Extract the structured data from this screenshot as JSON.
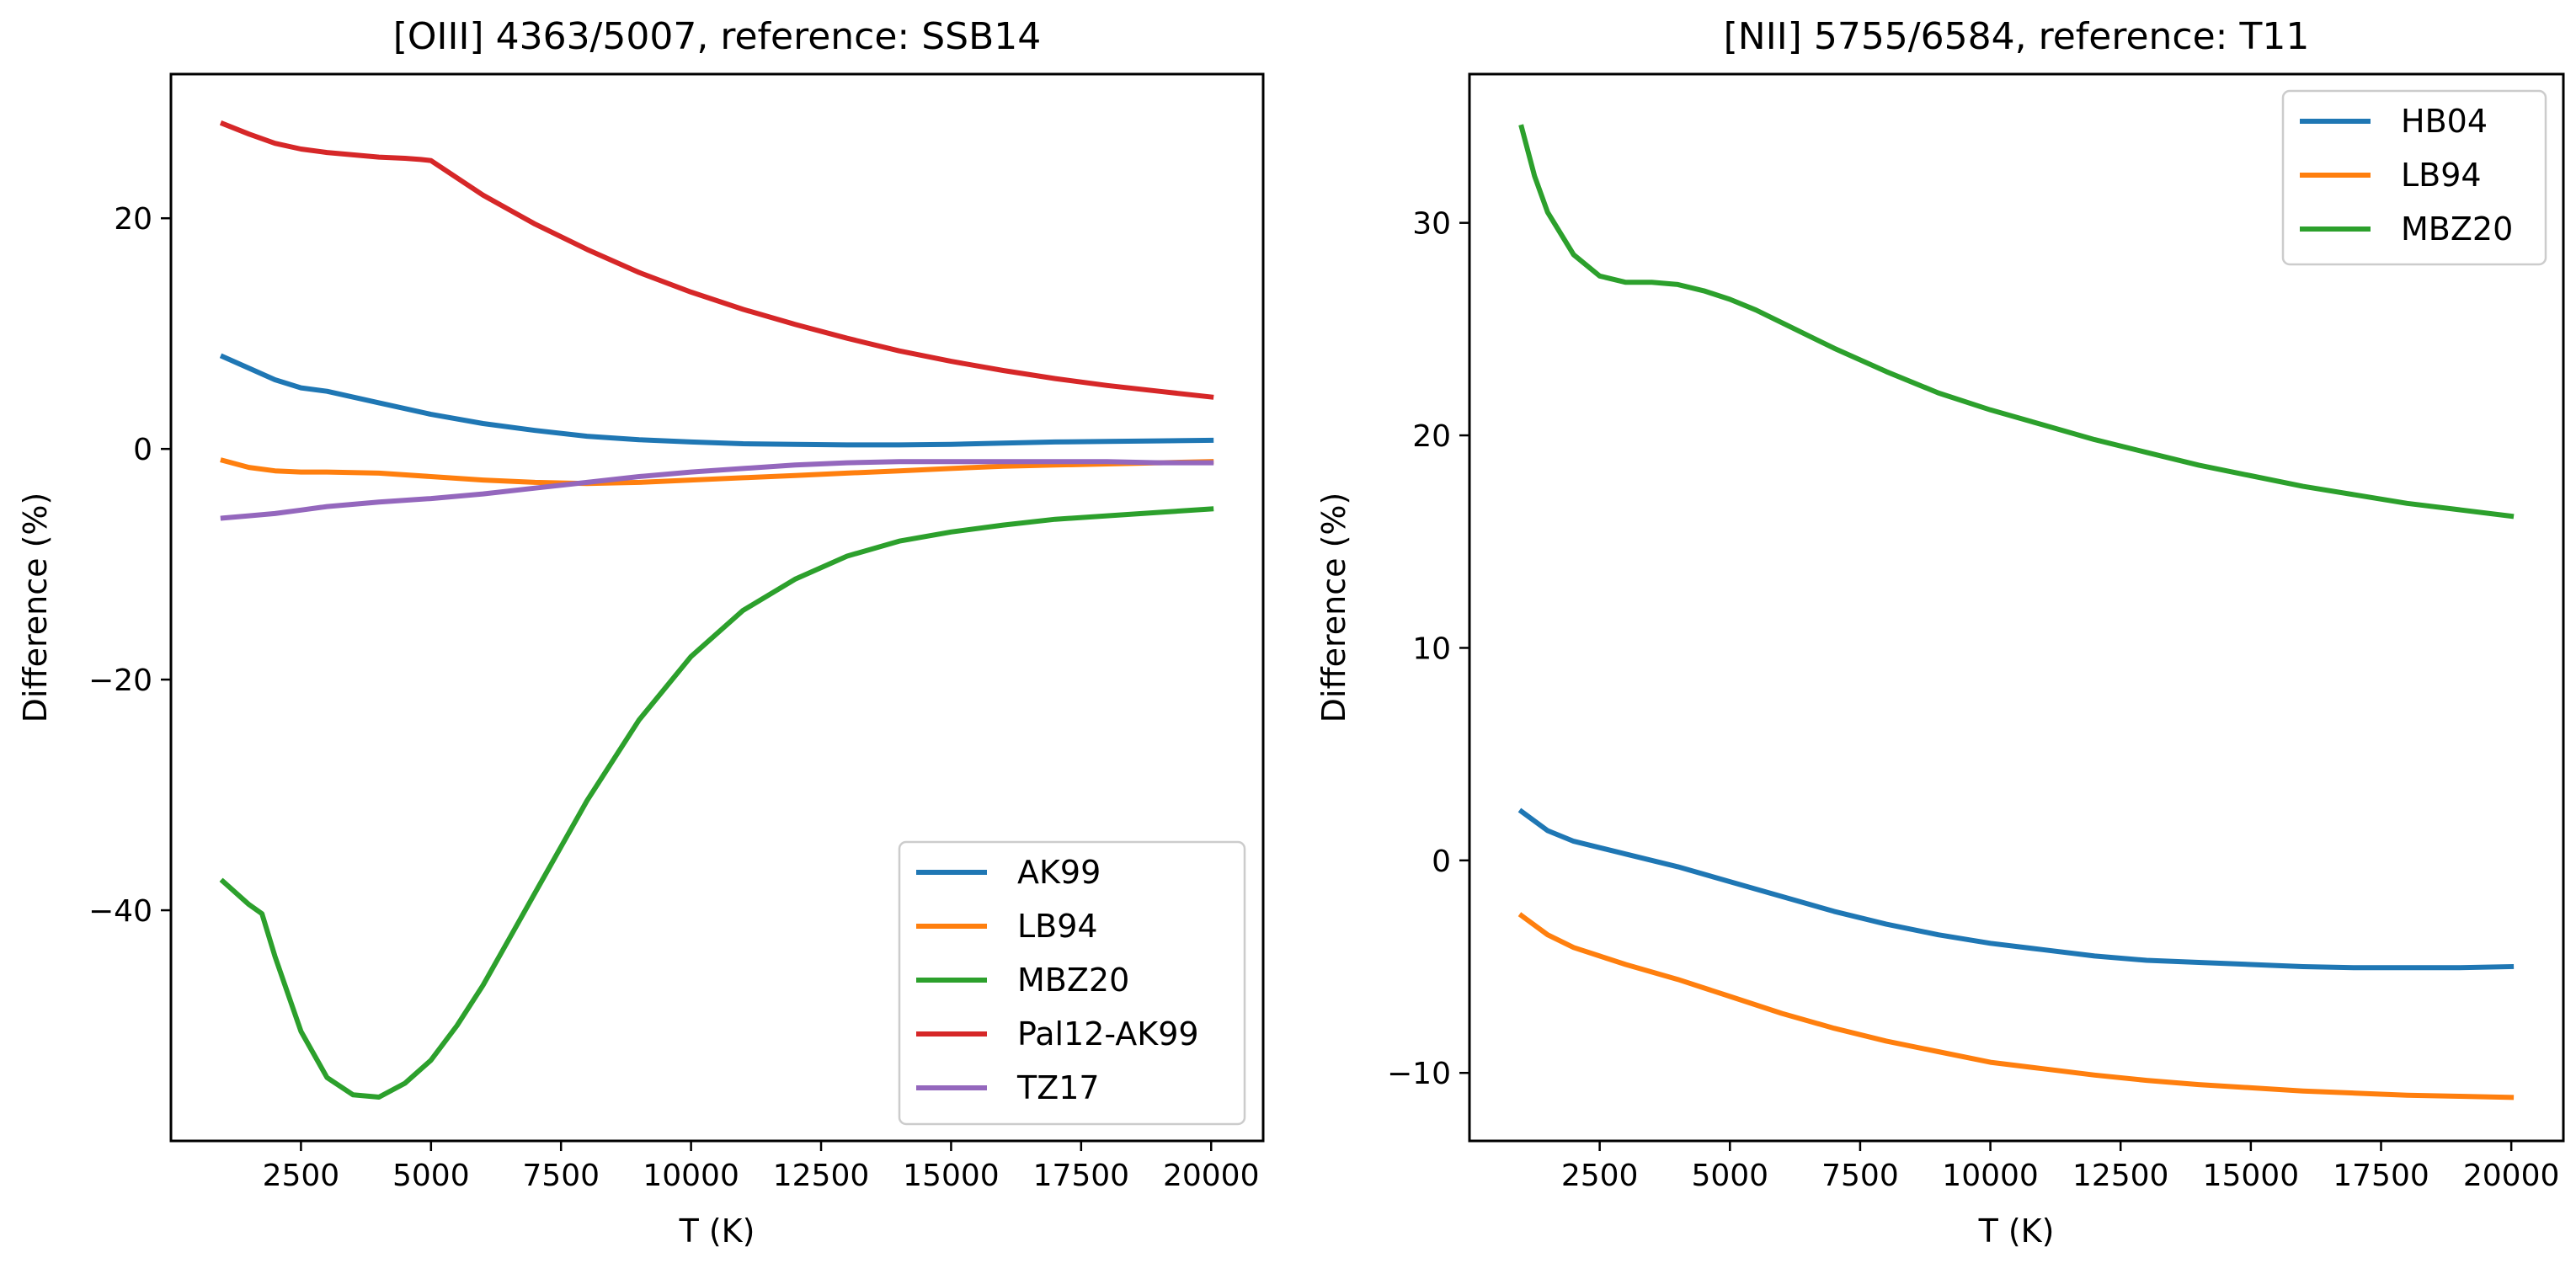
{
  "chart_data": [
    {
      "type": "line",
      "title": "[OIII] 4363/5007, reference: SSB14",
      "xlabel": "T (K)",
      "ylabel": "Difference (%)",
      "xlim": [
        0,
        21000
      ],
      "ylim": [
        -60,
        32.5
      ],
      "xticks": [
        2500,
        5000,
        7500,
        10000,
        12500,
        15000,
        17500,
        20000
      ],
      "xtick_labels": [
        "2500",
        "5000",
        "7500",
        "10000",
        "12500",
        "15000",
        "17500",
        "20000"
      ],
      "yticks": [
        -40,
        -20,
        0,
        20
      ],
      "ytick_labels": [
        "−40",
        "−20",
        "0",
        "20"
      ],
      "legend_loc": "lower-right",
      "series": [
        {
          "name": "AK99",
          "color": "#1f77b4",
          "x": [
            1000,
            1500,
            2000,
            2500,
            3000,
            4000,
            5000,
            6000,
            7000,
            8000,
            9000,
            10000,
            11000,
            12000,
            13000,
            14000,
            15000,
            16000,
            17000,
            18000,
            19000,
            20000
          ],
          "y": [
            8.0,
            7.0,
            6.0,
            5.3,
            5.0,
            4.0,
            3.0,
            2.2,
            1.6,
            1.1,
            0.8,
            0.6,
            0.45,
            0.4,
            0.35,
            0.35,
            0.4,
            0.5,
            0.6,
            0.65,
            0.7,
            0.75
          ]
        },
        {
          "name": "LB94",
          "color": "#ff7f0e",
          "x": [
            1000,
            1500,
            2000,
            2500,
            3000,
            4000,
            5000,
            6000,
            7000,
            8000,
            9000,
            10000,
            11000,
            12000,
            13000,
            14000,
            15000,
            16000,
            17000,
            18000,
            19000,
            20000
          ],
          "y": [
            -1.0,
            -1.6,
            -1.9,
            -2.0,
            -2.0,
            -2.1,
            -2.4,
            -2.7,
            -2.9,
            -3.0,
            -2.9,
            -2.7,
            -2.5,
            -2.3,
            -2.1,
            -1.9,
            -1.7,
            -1.5,
            -1.4,
            -1.3,
            -1.2,
            -1.1
          ]
        },
        {
          "name": "MBZ20",
          "color": "#2ca02c",
          "x": [
            1000,
            1500,
            1750,
            2000,
            2500,
            3000,
            3500,
            4000,
            4500,
            5000,
            5500,
            6000,
            6500,
            7000,
            7500,
            8000,
            9000,
            10000,
            11000,
            12000,
            13000,
            14000,
            15000,
            16000,
            17000,
            18000,
            19000,
            20000
          ],
          "y": [
            -37.5,
            -39.5,
            -40.3,
            -44.0,
            -50.5,
            -54.5,
            -56.0,
            -56.2,
            -55.0,
            -53.0,
            -50.0,
            -46.5,
            -42.5,
            -38.5,
            -34.5,
            -30.5,
            -23.5,
            -18.0,
            -14.0,
            -11.3,
            -9.3,
            -8.0,
            -7.2,
            -6.6,
            -6.1,
            -5.8,
            -5.5,
            -5.2
          ]
        },
        {
          "name": "Pal12-AK99",
          "color": "#d62728",
          "x": [
            1000,
            1500,
            2000,
            2500,
            3000,
            3500,
            4000,
            4500,
            4800,
            5000,
            5500,
            6000,
            7000,
            8000,
            9000,
            10000,
            11000,
            12000,
            13000,
            14000,
            15000,
            16000,
            17000,
            18000,
            19000,
            20000
          ],
          "y": [
            28.2,
            27.3,
            26.5,
            26.0,
            25.7,
            25.5,
            25.3,
            25.2,
            25.1,
            25.0,
            23.5,
            22.0,
            19.5,
            17.3,
            15.3,
            13.6,
            12.1,
            10.8,
            9.6,
            8.5,
            7.6,
            6.8,
            6.1,
            5.5,
            5.0,
            4.5
          ]
        },
        {
          "name": "TZ17",
          "color": "#9467bd",
          "x": [
            1000,
            1500,
            2000,
            2500,
            3000,
            4000,
            5000,
            6000,
            7000,
            8000,
            9000,
            10000,
            11000,
            12000,
            13000,
            14000,
            15000,
            16000,
            17000,
            18000,
            19000,
            20000
          ],
          "y": [
            -6.0,
            -5.8,
            -5.6,
            -5.3,
            -5.0,
            -4.6,
            -4.3,
            -3.9,
            -3.4,
            -2.9,
            -2.4,
            -2.0,
            -1.7,
            -1.4,
            -1.2,
            -1.1,
            -1.1,
            -1.1,
            -1.1,
            -1.1,
            -1.2,
            -1.2
          ]
        }
      ]
    },
    {
      "type": "line",
      "title": "[NII] 5755/6584, reference: T11",
      "xlabel": "T (K)",
      "ylabel": "Difference (%)",
      "xlim": [
        0,
        21000
      ],
      "ylim": [
        -13.2,
        37.0
      ],
      "xticks": [
        2500,
        5000,
        7500,
        10000,
        12500,
        15000,
        17500,
        20000
      ],
      "xtick_labels": [
        "2500",
        "5000",
        "7500",
        "10000",
        "12500",
        "15000",
        "17500",
        "20000"
      ],
      "yticks": [
        -10,
        0,
        10,
        20,
        30
      ],
      "ytick_labels": [
        "−10",
        "0",
        "10",
        "20",
        "30"
      ],
      "legend_loc": "upper-right",
      "series": [
        {
          "name": "HB04",
          "color": "#1f77b4",
          "x": [
            1000,
            1500,
            2000,
            2500,
            3000,
            4000,
            5000,
            6000,
            7000,
            8000,
            9000,
            10000,
            11000,
            12000,
            13000,
            14000,
            15000,
            16000,
            17000,
            18000,
            19000,
            20000
          ],
          "y": [
            2.3,
            1.4,
            0.9,
            0.6,
            0.3,
            -0.3,
            -1.0,
            -1.7,
            -2.4,
            -3.0,
            -3.5,
            -3.9,
            -4.2,
            -4.5,
            -4.7,
            -4.8,
            -4.9,
            -5.0,
            -5.05,
            -5.05,
            -5.05,
            -5.0
          ]
        },
        {
          "name": "LB94",
          "color": "#ff7f0e",
          "x": [
            1000,
            1500,
            2000,
            2500,
            3000,
            4000,
            5000,
            6000,
            7000,
            8000,
            9000,
            10000,
            11000,
            12000,
            13000,
            14000,
            15000,
            16000,
            17000,
            18000,
            19000,
            20000
          ],
          "y": [
            -2.6,
            -3.5,
            -4.1,
            -4.5,
            -4.9,
            -5.6,
            -6.4,
            -7.2,
            -7.9,
            -8.5,
            -9.0,
            -9.5,
            -9.8,
            -10.1,
            -10.35,
            -10.55,
            -10.7,
            -10.85,
            -10.95,
            -11.05,
            -11.1,
            -11.15
          ]
        },
        {
          "name": "MBZ20",
          "color": "#2ca02c",
          "x": [
            1000,
            1250,
            1500,
            2000,
            2500,
            3000,
            3500,
            4000,
            4500,
            5000,
            5500,
            6000,
            7000,
            8000,
            9000,
            10000,
            11000,
            12000,
            13000,
            14000,
            15000,
            16000,
            17000,
            18000,
            19000,
            20000
          ],
          "y": [
            34.5,
            32.2,
            30.5,
            28.5,
            27.5,
            27.2,
            27.2,
            27.1,
            26.8,
            26.4,
            25.9,
            25.3,
            24.1,
            23.0,
            22.0,
            21.2,
            20.5,
            19.8,
            19.2,
            18.6,
            18.1,
            17.6,
            17.2,
            16.8,
            16.5,
            16.2
          ]
        }
      ]
    }
  ]
}
